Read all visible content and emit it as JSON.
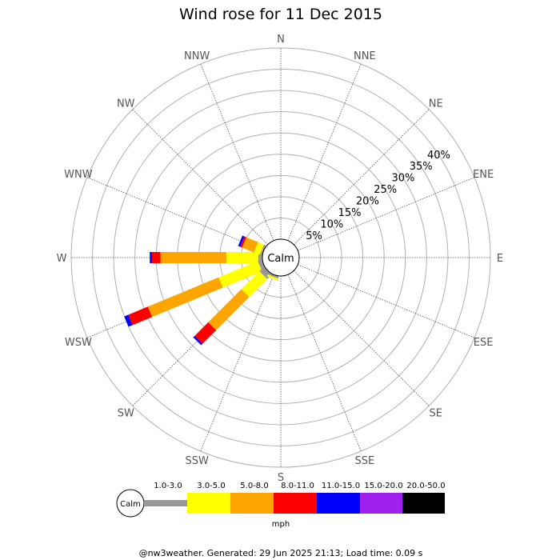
{
  "chart_data": {
    "type": "wind-rose",
    "title": "Wind rose for 11 Dec 2015",
    "directions": [
      "N",
      "NNE",
      "NE",
      "ENE",
      "E",
      "ESE",
      "SE",
      "SSE",
      "S",
      "SSW",
      "SW",
      "WSW",
      "W",
      "WNW",
      "NW",
      "NNW"
    ],
    "ring_labels": [
      "5%",
      "10%",
      "15%",
      "20%",
      "25%",
      "30%",
      "35%",
      "40%"
    ],
    "ring_values": [
      5,
      10,
      15,
      20,
      25,
      30,
      35,
      40
    ],
    "rmax": 45,
    "calm_label": "Calm",
    "unit": "mph",
    "speed_bins": [
      "1.0-3.0",
      "3.0-5.0",
      "5.0-8.0",
      "8.0-11.0",
      "11.0-15.0",
      "15.0-20.0",
      "20.0-50.0"
    ],
    "bin_colors": [
      "#999999",
      "#ffff00",
      "#ffa500",
      "#ff0000",
      "#0000ff",
      "#a020f0",
      "#000000"
    ],
    "series": [
      {
        "direction": "W",
        "values": [
          1.0,
          7.5,
          15.5,
          2.0,
          0.5,
          0,
          0
        ]
      },
      {
        "direction": "WSW",
        "values": [
          1.0,
          10.0,
          18.0,
          5.0,
          1.0,
          0,
          0
        ]
      },
      {
        "direction": "SW",
        "values": [
          1.5,
          6.0,
          11.0,
          4.5,
          0.5,
          0,
          0
        ]
      },
      {
        "direction": "WNW",
        "values": [
          0.5,
          1.5,
          3.0,
          0.5,
          0.5,
          0,
          0
        ]
      },
      {
        "direction": "SSW",
        "values": [
          0.5,
          0.5,
          0,
          0,
          0,
          0,
          0
        ]
      }
    ],
    "grid": true
  },
  "footer": "@nw3weather. Generated: 29 Jun 2025 21:13; Load time: 0.09 s"
}
